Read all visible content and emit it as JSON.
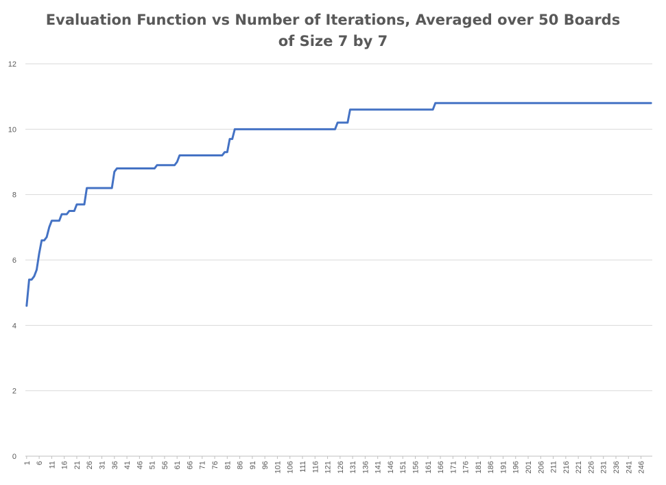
{
  "chart_data": {
    "type": "line",
    "title_lines": [
      "Evaluation Function vs Number of Iterations, Averaged over 50 Boards",
      "of Size 7 by 7"
    ],
    "title": "Evaluation Function vs Number of Iterations, Averaged over 50 Boards of Size 7 by 7",
    "xlabel": "",
    "ylabel": "",
    "ylim": [
      0,
      12
    ],
    "y_ticks": [
      0,
      2,
      4,
      6,
      8,
      10,
      12
    ],
    "xlim": [
      1,
      250
    ],
    "x_tick_start": 1,
    "x_tick_step": 5,
    "x_tick_end": 246,
    "grid": true,
    "legend": "none",
    "series_color": "#4472C4",
    "series": [
      {
        "points": [
          [
            1,
            4.6
          ],
          [
            2,
            5.4
          ],
          [
            3,
            5.4
          ],
          [
            4,
            5.5
          ],
          [
            5,
            5.7
          ],
          [
            6,
            6.2
          ],
          [
            7,
            6.6
          ],
          [
            8,
            6.6
          ],
          [
            9,
            6.7
          ],
          [
            10,
            7.0
          ],
          [
            11,
            7.2
          ],
          [
            14,
            7.2
          ],
          [
            15,
            7.4
          ],
          [
            17,
            7.4
          ],
          [
            18,
            7.5
          ],
          [
            20,
            7.5
          ],
          [
            21,
            7.7
          ],
          [
            24,
            7.7
          ],
          [
            25,
            8.2
          ],
          [
            35,
            8.2
          ],
          [
            36,
            8.7
          ],
          [
            37,
            8.8
          ],
          [
            52,
            8.8
          ],
          [
            53,
            8.9
          ],
          [
            60,
            8.9
          ],
          [
            61,
            9.0
          ],
          [
            62,
            9.2
          ],
          [
            79,
            9.2
          ],
          [
            80,
            9.3
          ],
          [
            81,
            9.3
          ],
          [
            82,
            9.7
          ],
          [
            83,
            9.7
          ],
          [
            84,
            10.0
          ],
          [
            124,
            10.0
          ],
          [
            125,
            10.2
          ],
          [
            129,
            10.2
          ],
          [
            130,
            10.6
          ],
          [
            163,
            10.6
          ],
          [
            164,
            10.8
          ],
          [
            250,
            10.8
          ]
        ]
      }
    ]
  }
}
